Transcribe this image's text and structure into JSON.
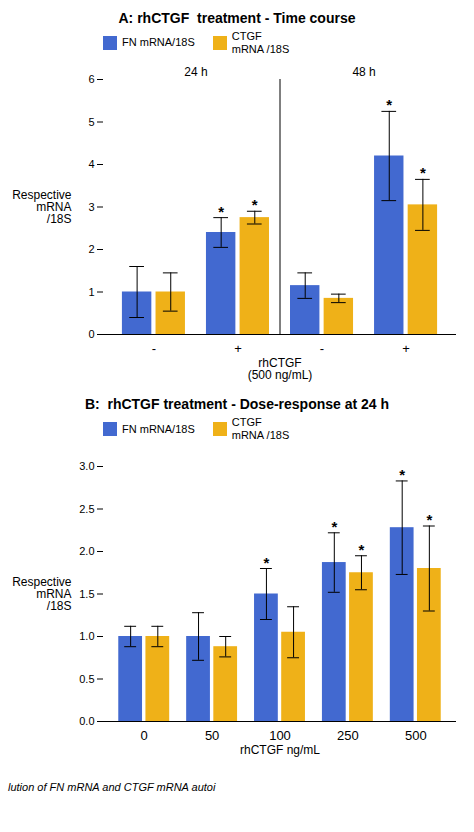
{
  "chart_data": [
    {
      "type": "bar",
      "title": "A: rhCTGF  treatment - Time course",
      "ylabel": "Respective\nmRNA\n/18S",
      "xlabel": "rhCTGF\n(500 ng/mL)",
      "categories": [
        "-",
        "+",
        "-",
        "+"
      ],
      "category_groups": [
        "24 h",
        "24 h",
        "48 h",
        "48 h"
      ],
      "series": [
        {
          "name": "FN mRNA/18S",
          "values": [
            1.0,
            2.4,
            1.15,
            4.2
          ],
          "errors": [
            0.6,
            0.35,
            0.3,
            1.05
          ],
          "annotations": [
            null,
            "*",
            null,
            "*"
          ]
        },
        {
          "name": "CTGF\nmRNA /18S",
          "values": [
            1.0,
            2.75,
            0.85,
            3.05
          ],
          "errors": [
            0.45,
            0.15,
            0.1,
            0.6
          ],
          "annotations": [
            null,
            "*",
            null,
            "*"
          ]
        }
      ],
      "ylim": [
        0,
        6
      ],
      "yticks": [
        0,
        1,
        2,
        3,
        4,
        5,
        6
      ],
      "legend": "upper left"
    },
    {
      "type": "bar",
      "title": "B:  rhCTGF treatment - Dose-response at 24 h",
      "ylabel": "Respective\nmRNA\n/18S",
      "xlabel": "rhCTGF ng/mL",
      "categories": [
        "0",
        "50",
        "100",
        "250",
        "500"
      ],
      "series": [
        {
          "name": "FN mRNA/18S",
          "values": [
            1.0,
            1.0,
            1.5,
            1.87,
            2.28
          ],
          "errors": [
            0.12,
            0.28,
            0.3,
            0.35,
            0.55
          ],
          "annotations": [
            null,
            null,
            "*",
            "*",
            "*"
          ]
        },
        {
          "name": "CTGF\nmRNA /18S",
          "values": [
            1.0,
            0.88,
            1.05,
            1.75,
            1.8
          ],
          "errors": [
            0.12,
            0.12,
            0.3,
            0.2,
            0.5
          ],
          "annotations": [
            null,
            null,
            null,
            "*",
            "*"
          ]
        }
      ],
      "ylim": [
        0,
        3
      ],
      "yticks": [
        {
          "value": 0,
          "label": "0.0"
        },
        0.5,
        {
          "value": 1.0,
          "label": "1.0"
        },
        1.5,
        {
          "value": 2.0,
          "label": "2.0"
        },
        2.5,
        {
          "value": 3.0,
          "label": "3.0"
        }
      ],
      "legend": "upper left"
    }
  ],
  "caption": "lution of FN mRNA and CTGF mRNA autoi"
}
